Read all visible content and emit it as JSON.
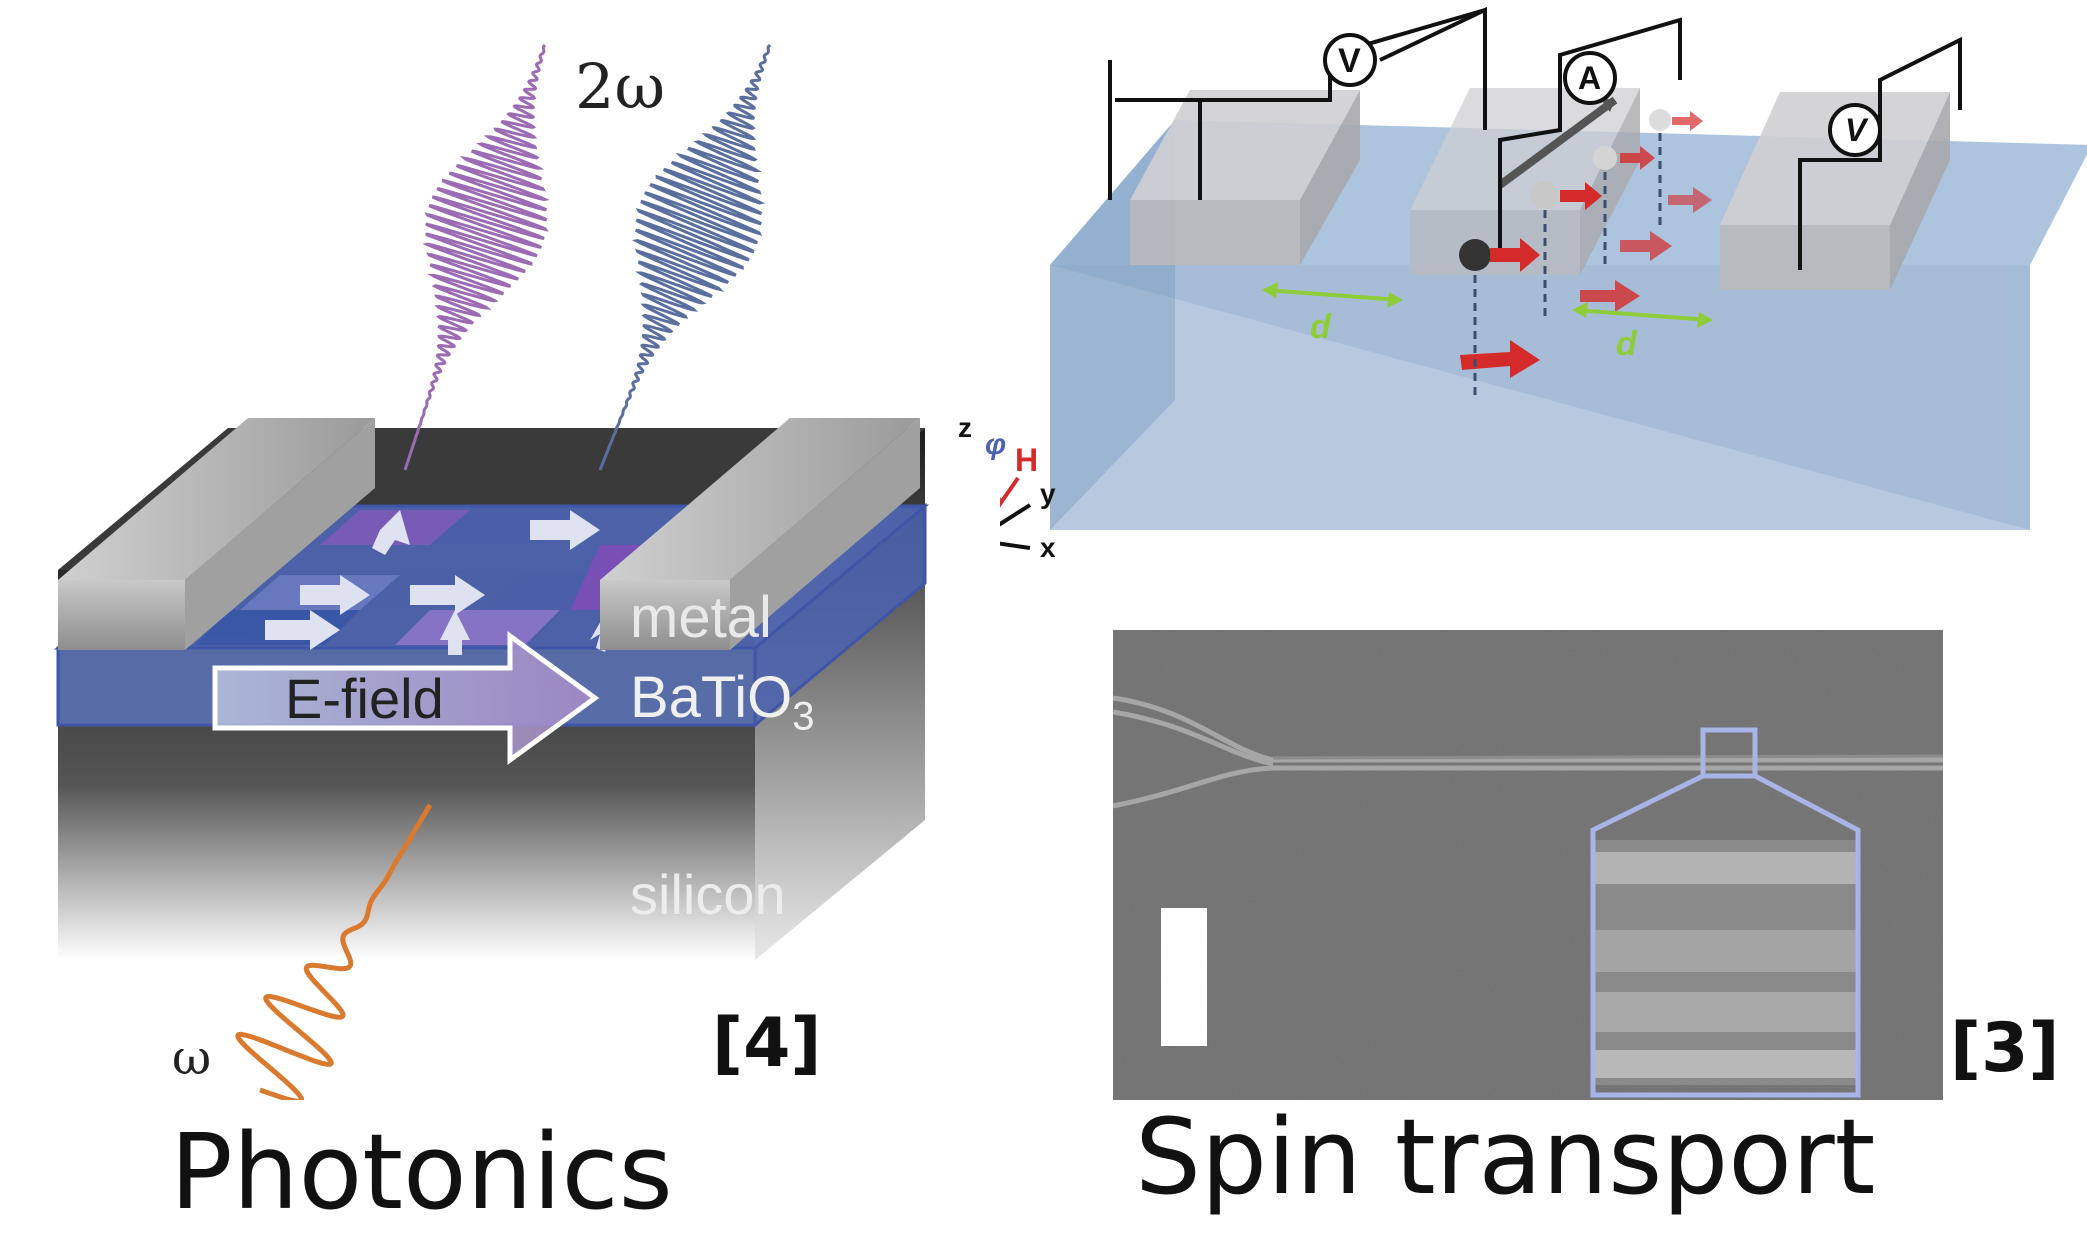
{
  "photonics": {
    "freq_top": "2ω",
    "freq_bottom": "ω",
    "layer_metal": "metal",
    "layer_bto": "BaTiO",
    "layer_bto_sub": "3",
    "layer_silicon": "silicon",
    "efield_label": "E-field",
    "reference": "[4]",
    "caption": "Photonics"
  },
  "spin": {
    "voltmeter_left": "V",
    "ammeter": "A",
    "voltmeter_right": "V",
    "distance_label": "d",
    "axis_z": "z",
    "axis_y": "y",
    "axis_x": "x",
    "axis_phi": "φ",
    "axis_h": "H",
    "reference": "[3]",
    "caption": "Spin transport"
  },
  "colors": {
    "metal": "#a9a9a9",
    "bto": "#4a62b0",
    "silicon": "#2a2a2a",
    "purple_beam": "#9b6bb3",
    "blue_beam": "#5b6f9e",
    "orange_beam": "#d97a2e",
    "substrate_blue": "#7b9dc4",
    "spin_red": "#d42a2a",
    "green_d": "#8fcc3a",
    "sem_outline": "#a8b4e6"
  }
}
